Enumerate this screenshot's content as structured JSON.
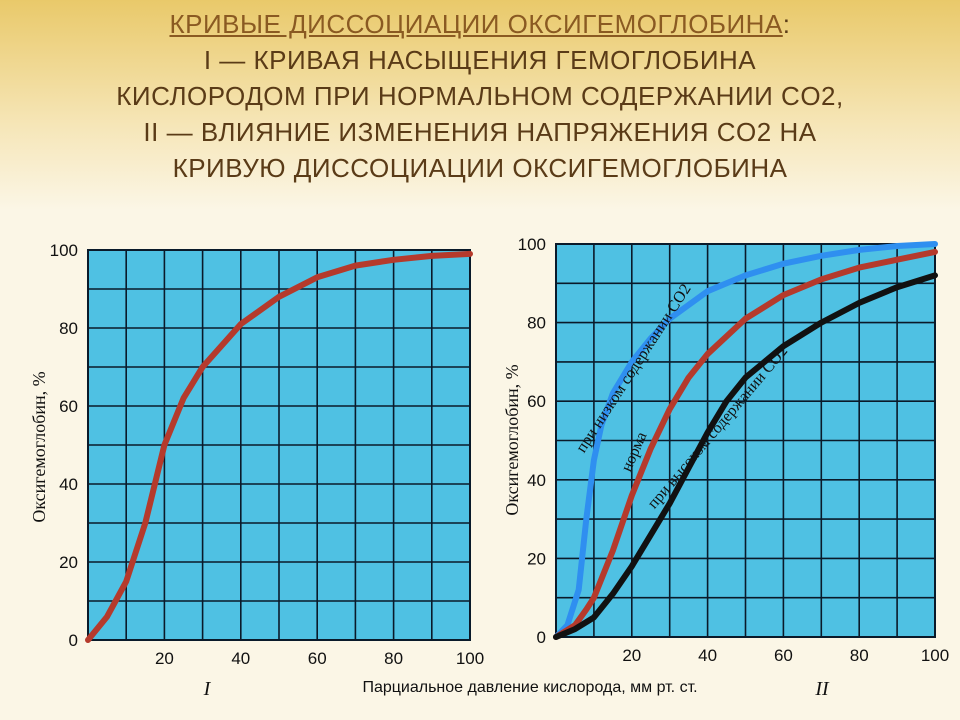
{
  "title": {
    "line1_highlight": "КРИВЫЕ ДИССОЦИАЦИИ ОКСИГЕМОГЛОБИНА",
    "line1_rest": ":",
    "line2": "I — КРИВАЯ НАСЫЩЕНИЯ ГЕМОГЛОБИНА",
    "line3": "КИСЛОРОДОМ ПРИ НОРМАЛЬНОМ СОДЕРЖАНИИ CO2,",
    "line4": "II — ВЛИЯНИЕ ИЗМЕНЕНИЯ НАПРЯЖЕНИЯ CO2 НА",
    "line5": "КРИВУЮ ДИССОЦИАЦИИ ОКСИГЕМОГЛОБИНА"
  },
  "colors": {
    "plot_bg": "#4fc1e3",
    "grid": "#0a1a2a",
    "normal": "#b53a2c",
    "low_co2": "#2f8ff0",
    "high_co2": "#111111"
  },
  "chart_data": [
    {
      "type": "line",
      "panel_label": "I",
      "xlabel": "",
      "ylabel": "Оксигемоглобин, %",
      "xlim": [
        0,
        100
      ],
      "ylim": [
        0,
        100
      ],
      "x_ticks": [
        "20",
        "40",
        "60",
        "80",
        "100"
      ],
      "y_ticks": [
        "0",
        "20",
        "40",
        "60",
        "80",
        "100"
      ],
      "grid": true,
      "series": [
        {
          "color_key": "normal",
          "x": [
            0,
            5,
            10,
            15,
            20,
            25,
            30,
            40,
            50,
            60,
            70,
            80,
            90,
            100
          ],
          "y": [
            0,
            6,
            15,
            30,
            50,
            62,
            70,
            81,
            88,
            93,
            96,
            97.5,
            98.5,
            99
          ]
        }
      ]
    },
    {
      "type": "line",
      "panel_label": "II",
      "xlabel": "Парциальное давление кислорода, мм рт. ст.",
      "ylabel": "Оксигемоглобин, %",
      "xlim": [
        0,
        100
      ],
      "ylim": [
        0,
        100
      ],
      "x_ticks": [
        "20",
        "40",
        "60",
        "80",
        "100"
      ],
      "y_ticks": [
        "0",
        "20",
        "40",
        "60",
        "80",
        "100"
      ],
      "grid": true,
      "series": [
        {
          "name": "при низком содержании CO2",
          "color_key": "low_co2",
          "x": [
            0,
            3,
            6,
            8,
            10,
            12,
            15,
            20,
            25,
            30,
            40,
            50,
            60,
            70,
            80,
            90,
            100
          ],
          "y": [
            0,
            3,
            12,
            30,
            45,
            54,
            62,
            70,
            76,
            81,
            88,
            92,
            95,
            97,
            98.5,
            99.5,
            100
          ]
        },
        {
          "name": "норма",
          "color_key": "normal",
          "x": [
            0,
            5,
            8,
            10,
            15,
            20,
            25,
            30,
            35,
            40,
            50,
            60,
            70,
            80,
            90,
            100
          ],
          "y": [
            0,
            3,
            7,
            10,
            22,
            36,
            48,
            58,
            66,
            72,
            81,
            87,
            91,
            94,
            96,
            98
          ]
        },
        {
          "name": "при высоком содержании CO2",
          "color_key": "high_co2",
          "x": [
            0,
            5,
            10,
            15,
            20,
            25,
            30,
            35,
            40,
            45,
            50,
            60,
            70,
            80,
            90,
            100
          ],
          "y": [
            0,
            2,
            5,
            11,
            18,
            26,
            34,
            43,
            52,
            60,
            66,
            74,
            80,
            85,
            89,
            92
          ]
        }
      ],
      "curve_labels": [
        {
          "text": "при низком содержании CO2",
          "series": 0
        },
        {
          "text": "норма",
          "series": 1
        },
        {
          "text": "при высоком содержании CO2",
          "series": 2
        }
      ]
    }
  ]
}
